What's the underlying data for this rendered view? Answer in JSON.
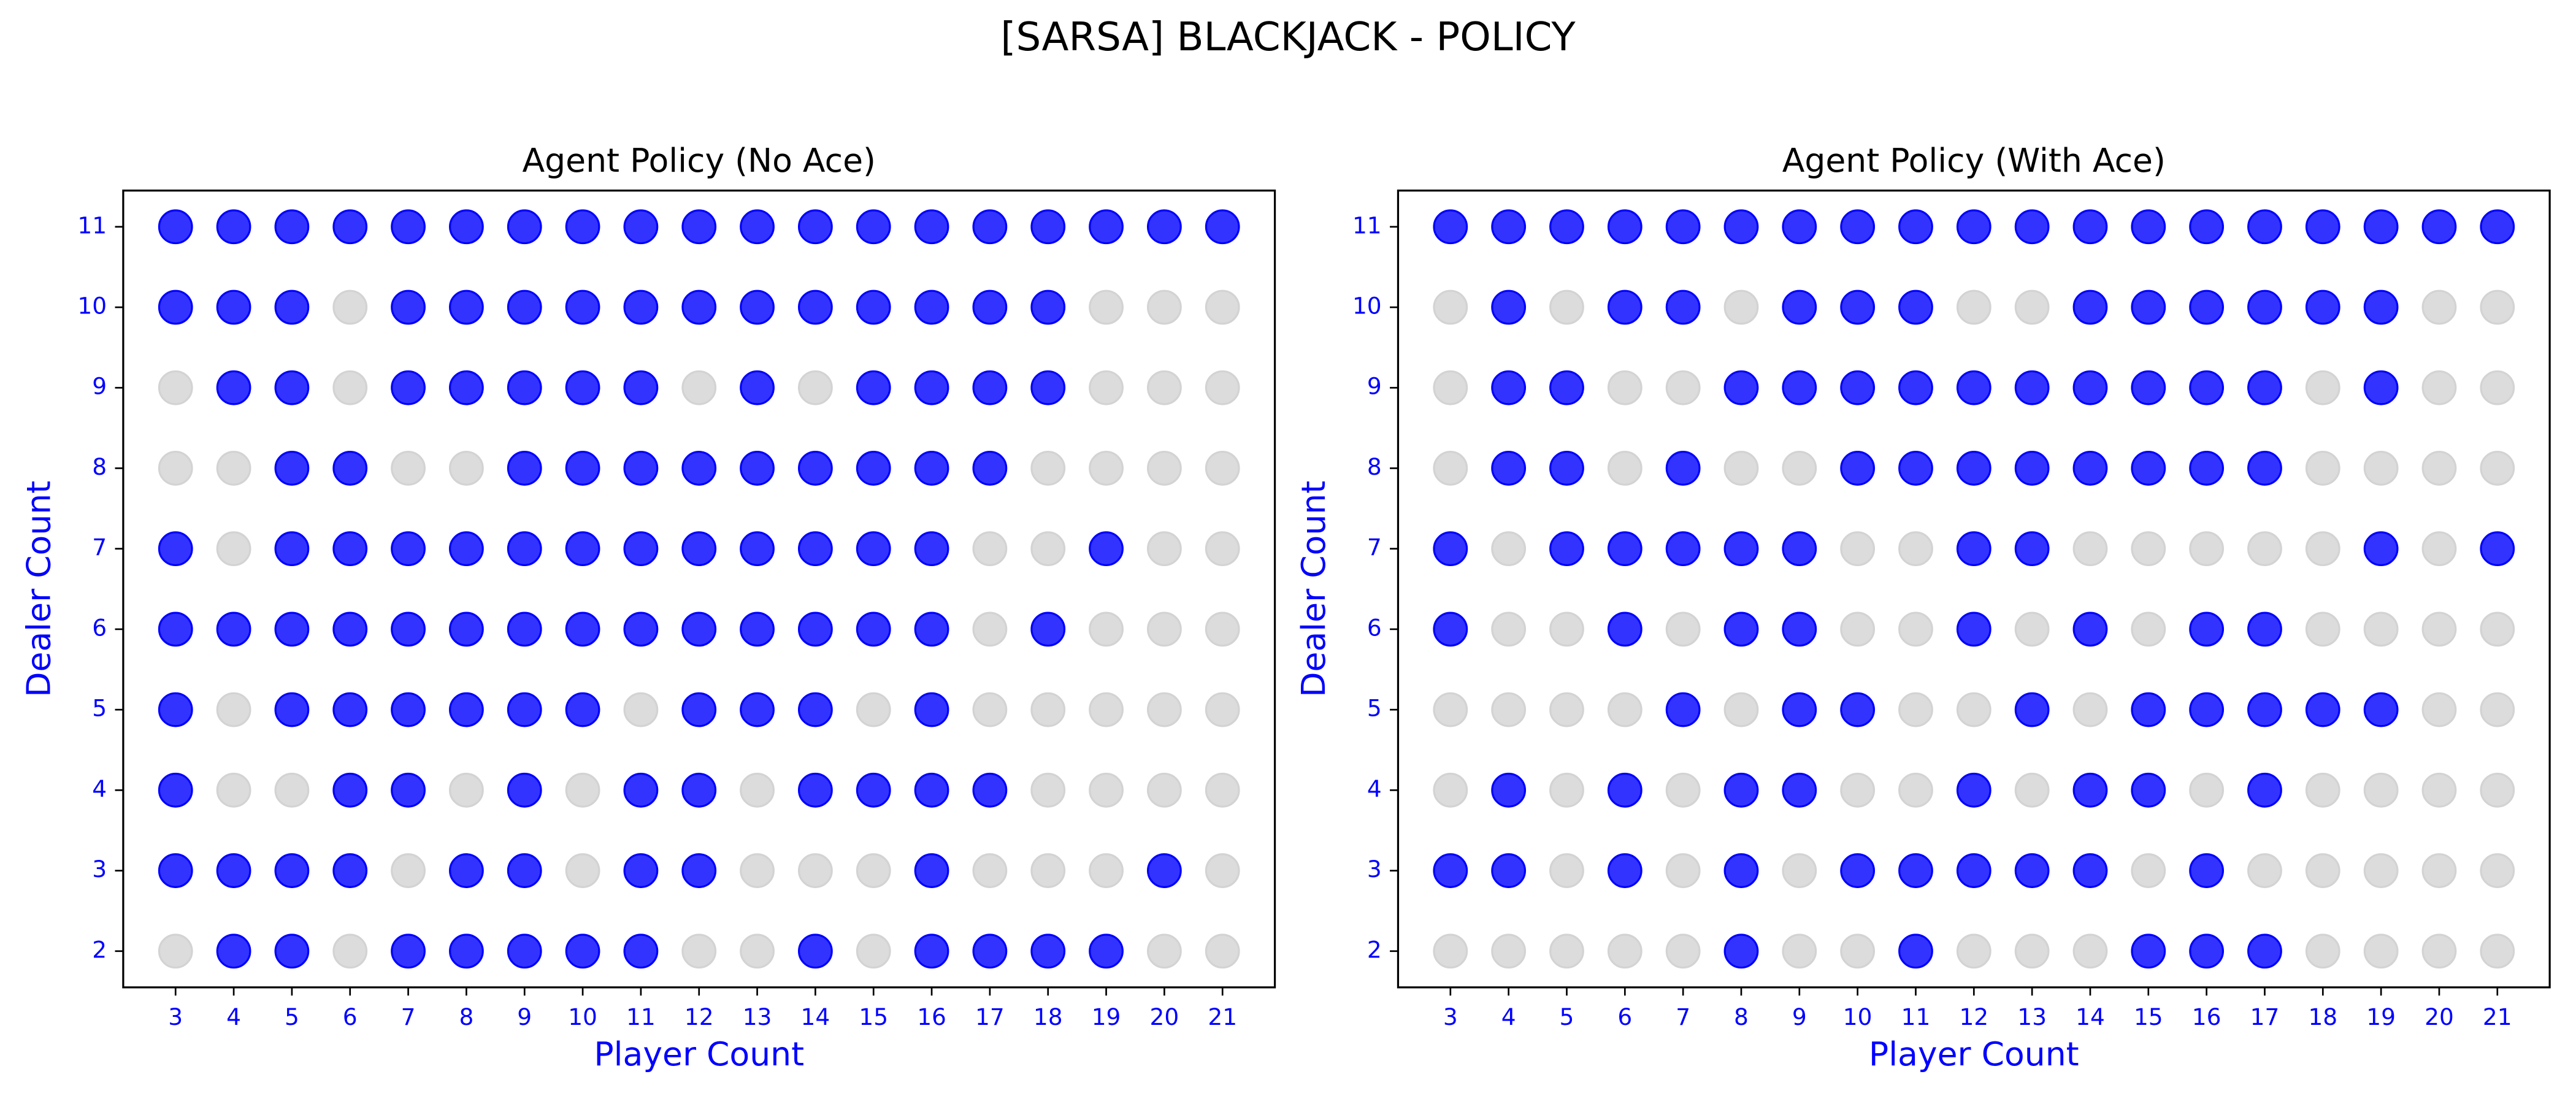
{
  "title": "[SARSA] BLACKJACK - POLICY",
  "chart_data": [
    {
      "type": "dot-grid",
      "title": "Agent Policy (No Ace)",
      "xlabel": "Player Count",
      "ylabel": "Dealer Count",
      "label_color": "#0000ff",
      "colors": [
        "#d3d3d3",
        "#0000ff"
      ],
      "xlim": [
        2.1,
        21.9
      ],
      "ylim": [
        1.55,
        11.45
      ],
      "xticks": [
        3,
        4,
        5,
        6,
        7,
        8,
        9,
        10,
        11,
        12,
        13,
        14,
        15,
        16,
        17,
        18,
        19,
        20,
        21
      ],
      "yticks": [
        2,
        3,
        4,
        5,
        6,
        7,
        8,
        9,
        10,
        11
      ],
      "values": [
        [
          0,
          1,
          1,
          0,
          1,
          1,
          1,
          1,
          1,
          0,
          0,
          1,
          0,
          1,
          1,
          1,
          1,
          0,
          0
        ],
        [
          1,
          1,
          1,
          1,
          0,
          1,
          1,
          0,
          1,
          1,
          0,
          0,
          0,
          1,
          0,
          0,
          0,
          1,
          0
        ],
        [
          1,
          0,
          0,
          1,
          1,
          0,
          1,
          0,
          1,
          1,
          0,
          1,
          1,
          1,
          1,
          0,
          0,
          0,
          0
        ],
        [
          1,
          0,
          1,
          1,
          1,
          1,
          1,
          1,
          0,
          1,
          1,
          1,
          0,
          1,
          0,
          0,
          0,
          0,
          0
        ],
        [
          1,
          1,
          1,
          1,
          1,
          1,
          1,
          1,
          1,
          1,
          1,
          1,
          1,
          1,
          0,
          1,
          0,
          0,
          0
        ],
        [
          1,
          0,
          1,
          1,
          1,
          1,
          1,
          1,
          1,
          1,
          1,
          1,
          1,
          1,
          0,
          0,
          1,
          0,
          0
        ],
        [
          0,
          0,
          1,
          1,
          0,
          0,
          1,
          1,
          1,
          1,
          1,
          1,
          1,
          1,
          1,
          0,
          0,
          0,
          0
        ],
        [
          0,
          1,
          1,
          0,
          1,
          1,
          1,
          1,
          1,
          0,
          1,
          0,
          1,
          1,
          1,
          1,
          0,
          0,
          0
        ],
        [
          1,
          1,
          1,
          0,
          1,
          1,
          1,
          1,
          1,
          1,
          1,
          1,
          1,
          1,
          1,
          1,
          0,
          0,
          0
        ],
        [
          1,
          1,
          1,
          1,
          1,
          1,
          1,
          1,
          1,
          1,
          1,
          1,
          1,
          1,
          1,
          1,
          1,
          1,
          1
        ]
      ]
    },
    {
      "type": "dot-grid",
      "title": "Agent Policy (With Ace)",
      "xlabel": "Player Count",
      "ylabel": "Dealer Count",
      "label_color": "#0000ff",
      "colors": [
        "#d3d3d3",
        "#0000ff"
      ],
      "xlim": [
        2.1,
        21.9
      ],
      "ylim": [
        1.55,
        11.45
      ],
      "xticks": [
        3,
        4,
        5,
        6,
        7,
        8,
        9,
        10,
        11,
        12,
        13,
        14,
        15,
        16,
        17,
        18,
        19,
        20,
        21
      ],
      "yticks": [
        2,
        3,
        4,
        5,
        6,
        7,
        8,
        9,
        10,
        11
      ],
      "values": [
        [
          0,
          0,
          0,
          0,
          0,
          1,
          0,
          0,
          1,
          0,
          0,
          0,
          1,
          1,
          1,
          0,
          0,
          0,
          0
        ],
        [
          1,
          1,
          0,
          1,
          0,
          1,
          0,
          1,
          1,
          1,
          1,
          1,
          0,
          1,
          0,
          0,
          0,
          0,
          0
        ],
        [
          0,
          1,
          0,
          1,
          0,
          1,
          1,
          0,
          0,
          1,
          0,
          1,
          1,
          0,
          1,
          0,
          0,
          0,
          0
        ],
        [
          0,
          0,
          0,
          0,
          1,
          0,
          1,
          1,
          0,
          0,
          1,
          0,
          1,
          1,
          1,
          1,
          1,
          0,
          0
        ],
        [
          1,
          0,
          0,
          1,
          0,
          1,
          1,
          0,
          0,
          1,
          0,
          1,
          0,
          1,
          1,
          0,
          0,
          0,
          0
        ],
        [
          1,
          0,
          1,
          1,
          1,
          1,
          1,
          0,
          0,
          1,
          1,
          0,
          0,
          0,
          0,
          0,
          1,
          0,
          1
        ],
        [
          0,
          1,
          1,
          0,
          1,
          0,
          0,
          1,
          1,
          1,
          1,
          1,
          1,
          1,
          1,
          0,
          0,
          0,
          0
        ],
        [
          0,
          1,
          1,
          0,
          0,
          1,
          1,
          1,
          1,
          1,
          1,
          1,
          1,
          1,
          1,
          0,
          1,
          0,
          0
        ],
        [
          0,
          1,
          0,
          1,
          1,
          0,
          1,
          1,
          1,
          0,
          0,
          1,
          1,
          1,
          1,
          1,
          1,
          0,
          0
        ],
        [
          1,
          1,
          1,
          1,
          1,
          1,
          1,
          1,
          1,
          1,
          1,
          1,
          1,
          1,
          1,
          1,
          1,
          1,
          1
        ]
      ]
    }
  ]
}
